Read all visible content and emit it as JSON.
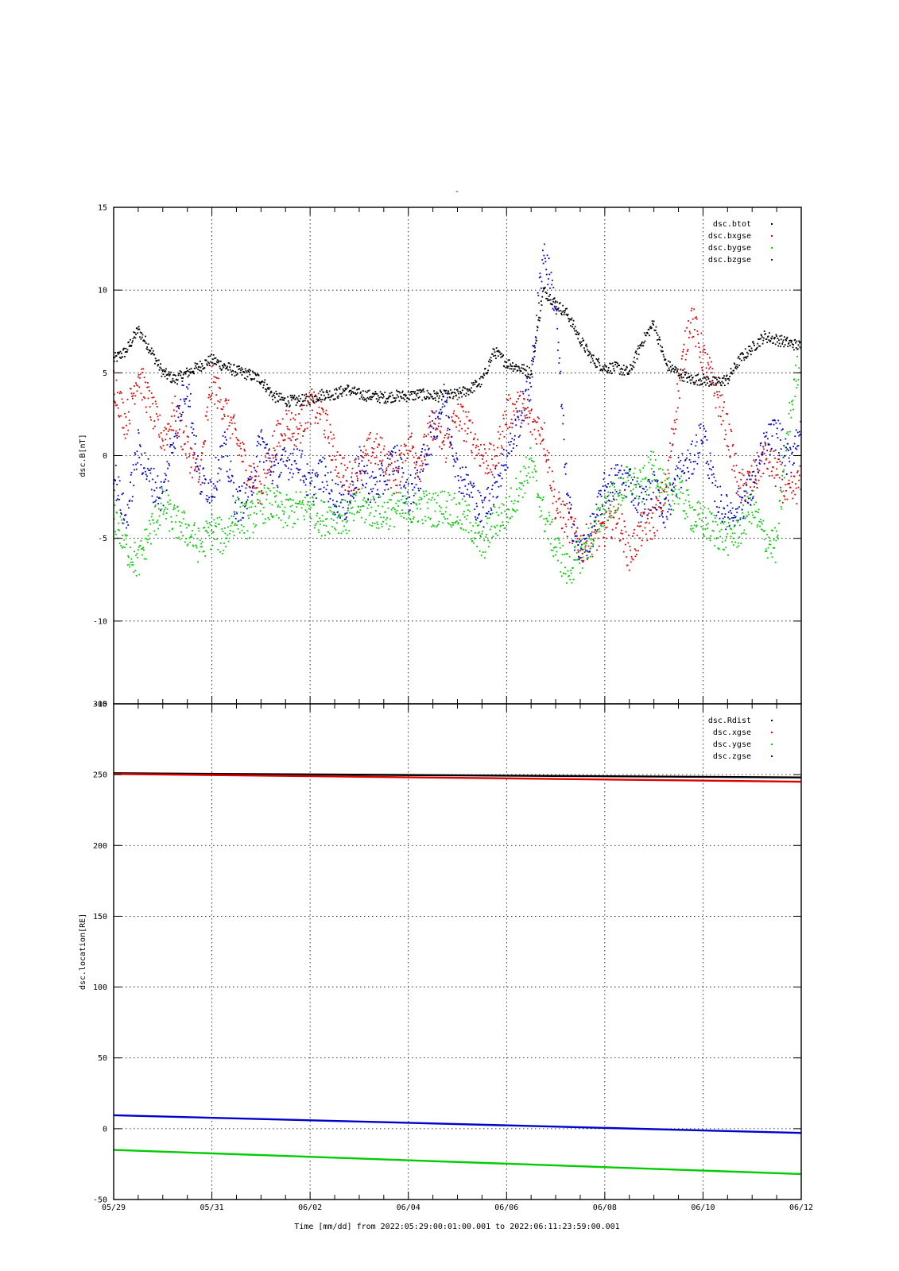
{
  "page": {
    "title": "-",
    "xlabel": "Time [mm/dd]  from 2022:05:29:00:01:00.001  to  2022:06:11:23:59:00.001"
  },
  "colors": {
    "black": "#000000",
    "red": "#dd0000",
    "green": "#00cc00",
    "blue": "#0000cc"
  },
  "chart_data": [
    {
      "type": "scatter",
      "ylabel": "dsc.B[nT]",
      "xlim": [
        0,
        14
      ],
      "ylim": [
        -15,
        15
      ],
      "x_ticks": [
        0,
        2,
        4,
        6,
        8,
        10,
        12,
        14
      ],
      "x_tick_labels": [
        "05/29",
        "05/31",
        "06/02",
        "06/04",
        "06/06",
        "06/08",
        "06/10",
        "06/12"
      ],
      "y_ticks": [
        -15,
        -10,
        -5,
        0,
        5,
        10,
        15
      ],
      "y_tick_labels": [
        "-15",
        "-10",
        "-5",
        "0",
        "5",
        "10",
        "15"
      ],
      "grid": true,
      "legend": "top-right",
      "series": [
        {
          "name": "dsc.btot",
          "color": "#000000",
          "x": [
            0,
            0.25,
            0.5,
            0.75,
            1,
            1.25,
            1.5,
            1.75,
            2,
            2.25,
            2.5,
            2.75,
            3,
            3.25,
            3.5,
            3.75,
            4,
            4.25,
            4.5,
            4.75,
            5,
            5.25,
            5.5,
            5.75,
            6,
            6.25,
            6.5,
            6.75,
            7,
            7.25,
            7.5,
            7.75,
            8,
            8.25,
            8.5,
            8.75,
            9,
            9.25,
            9.5,
            9.75,
            10,
            10.25,
            10.5,
            10.75,
            11,
            11.25,
            11.5,
            11.75,
            12,
            12.25,
            12.5,
            12.75,
            13,
            13.25,
            13.5,
            13.75,
            14
          ],
          "y": [
            5.8,
            6.3,
            7.6,
            6.4,
            5.0,
            4.6,
            5.0,
            5.4,
            5.8,
            5.4,
            5.1,
            4.9,
            4.6,
            3.6,
            3.3,
            3.3,
            3.4,
            3.7,
            3.7,
            4.0,
            3.7,
            3.6,
            3.5,
            3.6,
            3.6,
            3.7,
            3.6,
            3.6,
            3.7,
            4.0,
            4.5,
            6.3,
            5.6,
            5.3,
            5.0,
            10.0,
            9.2,
            8.5,
            7.0,
            5.8,
            5.3,
            5.3,
            5.0,
            6.8,
            8.0,
            5.5,
            5.0,
            4.6,
            4.6,
            4.4,
            4.6,
            5.8,
            6.5,
            7.2,
            7.0,
            6.8,
            6.6
          ]
        },
        {
          "name": "dsc.bxgse",
          "color": "#dd0000",
          "x": [
            0,
            0.25,
            0.5,
            0.75,
            1,
            1.25,
            1.5,
            1.75,
            2,
            2.25,
            2.5,
            2.75,
            3,
            3.25,
            3.5,
            3.75,
            4,
            4.25,
            4.5,
            4.75,
            5,
            5.25,
            5.5,
            5.75,
            6,
            6.25,
            6.5,
            6.75,
            7,
            7.25,
            7.5,
            7.75,
            8,
            8.25,
            8.5,
            8.75,
            9,
            9.25,
            9.5,
            9.75,
            10,
            10.25,
            10.5,
            10.75,
            11,
            11.25,
            11.5,
            11.75,
            12,
            12.25,
            12.5,
            12.75,
            13,
            13.25,
            13.5,
            13.75,
            14
          ],
          "y": [
            4.5,
            2.0,
            5.0,
            3.0,
            1.0,
            2.5,
            0.5,
            -1.5,
            4.5,
            3.0,
            1.0,
            -1.0,
            -2.0,
            0.5,
            2.0,
            1.5,
            3.0,
            2.5,
            0.0,
            -1.5,
            -1.0,
            0.5,
            0.0,
            -1.5,
            1.0,
            -0.5,
            2.0,
            0.5,
            2.5,
            1.5,
            0.0,
            -0.5,
            2.5,
            3.0,
            2.0,
            1.5,
            -3.0,
            -4.0,
            -5.5,
            -5.0,
            -4.5,
            -3.5,
            -6.0,
            -4.5,
            -4.0,
            -2.0,
            4.0,
            8.5,
            6.0,
            4.0,
            1.5,
            -2.0,
            -1.5,
            0.0,
            -1.0,
            -2.5,
            -1.5
          ]
        },
        {
          "name": "dsc.bygse",
          "color": "#00cc00",
          "x": [
            0,
            0.25,
            0.5,
            0.75,
            1,
            1.25,
            1.5,
            1.75,
            2,
            2.25,
            2.5,
            2.75,
            3,
            3.25,
            3.5,
            3.75,
            4,
            4.25,
            4.5,
            4.75,
            5,
            5.25,
            5.5,
            5.75,
            6,
            6.25,
            6.5,
            6.75,
            7,
            7.25,
            7.5,
            7.75,
            8,
            8.25,
            8.5,
            8.75,
            9,
            9.25,
            9.5,
            9.75,
            10,
            10.25,
            10.5,
            10.75,
            11,
            11.25,
            11.5,
            11.75,
            12,
            12.25,
            12.5,
            12.75,
            13,
            13.25,
            13.5,
            13.75,
            14
          ],
          "y": [
            -3.5,
            -5.5,
            -6.5,
            -4.5,
            -3.0,
            -4.0,
            -4.5,
            -5.5,
            -4.5,
            -5.0,
            -3.5,
            -4.0,
            -3.0,
            -3.0,
            -3.5,
            -3.2,
            -3.0,
            -3.8,
            -3.5,
            -3.8,
            -3.0,
            -3.3,
            -3.5,
            -3.2,
            -3.5,
            -3.0,
            -3.3,
            -3.0,
            -3.5,
            -4.0,
            -5.5,
            -4.0,
            -3.5,
            -2.0,
            -0.5,
            -3.5,
            -5.5,
            -7.0,
            -6.0,
            -5.0,
            -3.0,
            -2.5,
            -1.5,
            -2.0,
            -0.5,
            -2.5,
            -2.0,
            -3.5,
            -4.0,
            -4.5,
            -5.0,
            -4.5,
            -3.0,
            -5.0,
            -5.5,
            2.0,
            6.5
          ]
        },
        {
          "name": "dsc.bzgse",
          "color": "#0000cc",
          "x": [
            0,
            0.25,
            0.5,
            0.75,
            1,
            1.25,
            1.5,
            1.75,
            2,
            2.25,
            2.5,
            2.75,
            3,
            3.25,
            3.5,
            3.75,
            4,
            4.25,
            4.5,
            4.75,
            5,
            5.25,
            5.5,
            5.75,
            6,
            6.25,
            6.5,
            6.75,
            7,
            7.25,
            7.5,
            7.75,
            8,
            8.25,
            8.5,
            8.75,
            9,
            9.25,
            9.5,
            9.75,
            10,
            10.25,
            10.5,
            10.75,
            11,
            11.25,
            11.5,
            11.75,
            12,
            12.25,
            12.5,
            12.75,
            13,
            13.25,
            13.5,
            13.75,
            14
          ],
          "y": [
            -1.0,
            -4.0,
            0.5,
            -1.5,
            -2.5,
            1.5,
            4.5,
            -1.5,
            -2.0,
            0.5,
            -3.0,
            -2.5,
            1.0,
            -1.0,
            -0.5,
            0.0,
            -2.0,
            -1.0,
            -2.5,
            -3.0,
            -0.5,
            -2.0,
            -1.5,
            0.0,
            -2.5,
            -1.0,
            1.5,
            3.5,
            -1.0,
            -2.0,
            -3.5,
            -2.0,
            0.0,
            2.0,
            4.5,
            12.5,
            9.0,
            -3.0,
            -6.0,
            -4.5,
            -2.0,
            -1.5,
            -1.5,
            -3.0,
            -2.0,
            -3.5,
            -1.0,
            -0.5,
            1.5,
            -2.5,
            -3.5,
            -3.0,
            -2.0,
            0.5,
            1.5,
            -0.5,
            2.0
          ]
        }
      ]
    },
    {
      "type": "line",
      "ylabel": "dsc.location[RE]",
      "xlim": [
        0,
        14
      ],
      "ylim": [
        -50,
        300
      ],
      "x_ticks": [
        0,
        2,
        4,
        6,
        8,
        10,
        12,
        14
      ],
      "x_tick_labels": [
        "05/29",
        "05/31",
        "06/02",
        "06/04",
        "06/06",
        "06/08",
        "06/10",
        "06/12"
      ],
      "y_ticks": [
        -50,
        0,
        50,
        100,
        150,
        200,
        250,
        300
      ],
      "y_tick_labels": [
        "-50",
        "0",
        "50",
        "100",
        "150",
        "200",
        "250",
        "300"
      ],
      "grid": true,
      "legend": "top-right",
      "series": [
        {
          "name": "dsc.Rdist",
          "color": "#000000",
          "x": [
            0,
            14
          ],
          "y": [
            251,
            248
          ]
        },
        {
          "name": "dsc.xgse",
          "color": "#dd0000",
          "x": [
            0,
            14
          ],
          "y": [
            250.5,
            245
          ]
        },
        {
          "name": "dsc.ygse",
          "color": "#00cc00",
          "x": [
            0,
            14
          ],
          "y": [
            -15,
            -32
          ]
        },
        {
          "name": "dsc.zgse",
          "color": "#0000cc",
          "x": [
            0,
            14
          ],
          "y": [
            9.5,
            -3
          ]
        }
      ]
    }
  ]
}
